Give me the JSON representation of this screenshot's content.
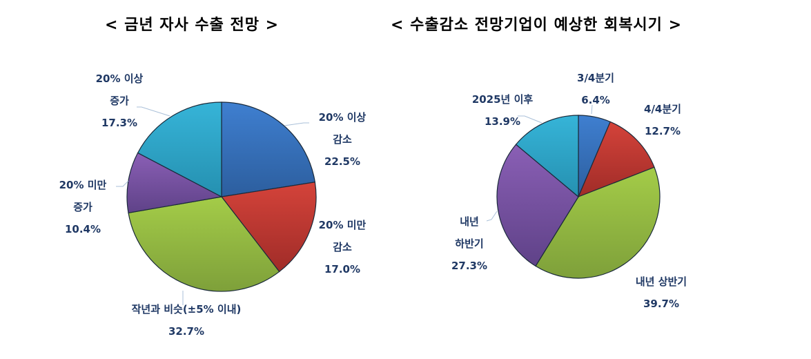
{
  "chart_data": [
    {
      "type": "pie",
      "title": "< 금년 자사 수출 전망 >",
      "start_angle": "12 o'clock, clockwise",
      "categories": [
        "20% 이상 감소",
        "20% 미만 감소",
        "작년과 비슷(±5% 이내)",
        "20% 미만 증가",
        "20% 이상 증가"
      ],
      "values": [
        22.5,
        17.0,
        32.7,
        10.4,
        17.3
      ],
      "unit": "%",
      "colors": [
        "#3a72c0",
        "#c0392f",
        "#92b843",
        "#7a55a0",
        "#2fa8c8"
      ]
    },
    {
      "type": "pie",
      "title": "< 수출감소 전망기업이 예상한 회복시기 >",
      "start_angle": "12 o'clock, clockwise",
      "categories": [
        "3/4분기",
        "4/4분기",
        "내년 상반기",
        "내년 하반기",
        "2025년 이후"
      ],
      "values": [
        6.4,
        12.7,
        39.7,
        27.3,
        13.9
      ],
      "unit": "%",
      "colors": [
        "#3a72c0",
        "#c0392f",
        "#92b843",
        "#7a55a0",
        "#2fa8c8"
      ]
    }
  ],
  "titles": {
    "left": "< 금년 자사 수출 전망 >",
    "right": "< 수출감소 전망기업이 예상한 회복시기 >"
  },
  "left_labels": [
    {
      "line1": "20% 이상",
      "line2": "감소",
      "value": "22.5%"
    },
    {
      "line1": "20% 미만",
      "line2": "감소",
      "value": "17.0%"
    },
    {
      "line1": "작년과 비슷(±5% 이내)",
      "value": "32.7%"
    },
    {
      "line1": "20% 미만",
      "line2": "증가",
      "value": "10.4%"
    },
    {
      "line1": "20% 이상",
      "line2": "증가",
      "value": "17.3%"
    }
  ],
  "right_labels": [
    {
      "line1": "3/4분기",
      "value": "6.4%"
    },
    {
      "line1": "4/4분기",
      "value": "12.7%"
    },
    {
      "line1": "내년 상반기",
      "value": "39.7%"
    },
    {
      "line1": "내년",
      "line2": "하반기",
      "value": "27.3%"
    },
    {
      "line1": "2025년 이후",
      "value": "13.9%"
    }
  ]
}
